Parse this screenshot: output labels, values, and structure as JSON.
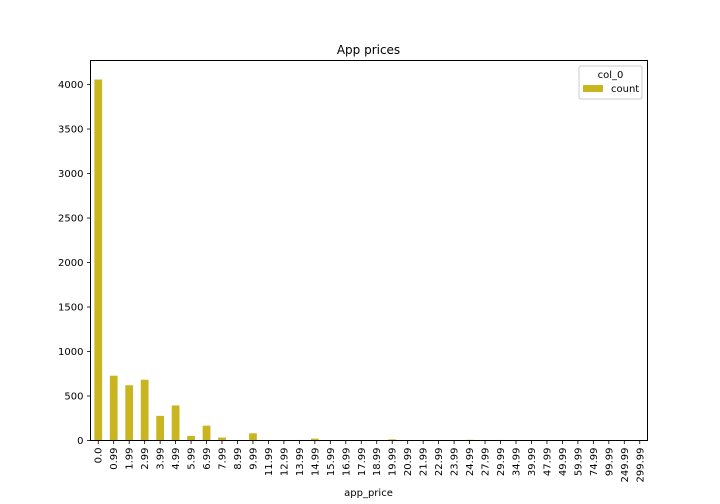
{
  "chart_data": {
    "type": "bar",
    "title": "App prices",
    "xlabel": "app_price",
    "ylabel": "",
    "ylim": [
      0,
      4270
    ],
    "yticks": [
      0,
      500,
      1000,
      1500,
      2000,
      2500,
      3000,
      3500,
      4000
    ],
    "categories": [
      "0.0",
      "0.99",
      "1.99",
      "2.99",
      "3.99",
      "4.99",
      "5.99",
      "6.99",
      "7.99",
      "8.99",
      "9.99",
      "11.99",
      "12.99",
      "13.99",
      "14.99",
      "15.99",
      "16.99",
      "17.99",
      "18.99",
      "19.99",
      "20.99",
      "21.99",
      "22.99",
      "23.99",
      "24.99",
      "27.99",
      "29.99",
      "34.99",
      "39.99",
      "47.99",
      "49.99",
      "59.99",
      "74.99",
      "99.99",
      "249.99",
      "299.99"
    ],
    "legend": {
      "title": "col_0",
      "position": "top-right"
    },
    "grid": false,
    "series": [
      {
        "name": "count",
        "color": "#c9b51f",
        "values": [
          4056,
          728,
          621,
          683,
          277,
          394,
          52,
          167,
          33,
          2,
          81,
          5,
          5,
          6,
          21,
          4,
          2,
          2,
          2,
          13,
          2,
          2,
          2,
          2,
          8,
          2,
          6,
          2,
          2,
          2,
          2,
          3,
          2,
          2,
          1,
          1
        ]
      }
    ]
  }
}
